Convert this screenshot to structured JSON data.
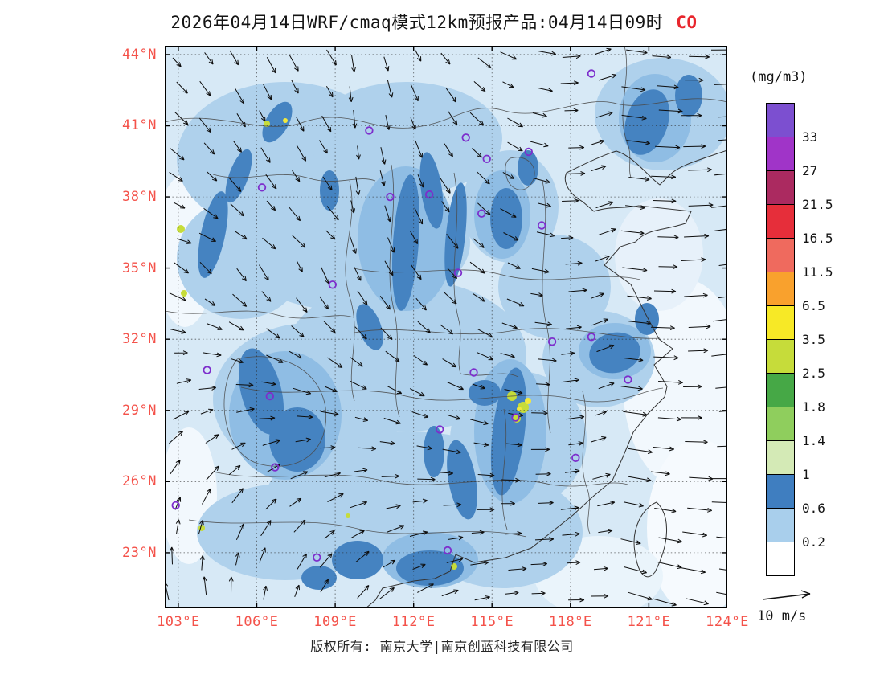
{
  "title": {
    "text": "2026年04月14日WRF/cmaq模式12km预报产品:04月14日09时",
    "species": "CO",
    "species_color": "#e8262d"
  },
  "map": {
    "bounds": {
      "lon_min": 102.48,
      "lon_max": 124.0,
      "lat_min": 20.66,
      "lat_max": 44.37
    },
    "tick_color": "#f4524a",
    "marker_color": "#7d2ecc",
    "lat_ticks": [
      {
        "label": "44°N",
        "value": 44
      },
      {
        "label": "41°N",
        "value": 41
      },
      {
        "label": "38°N",
        "value": 38
      },
      {
        "label": "35°N",
        "value": 35
      },
      {
        "label": "32°N",
        "value": 32
      },
      {
        "label": "29°N",
        "value": 29
      },
      {
        "label": "26°N",
        "value": 26
      },
      {
        "label": "23°N",
        "value": 23
      }
    ],
    "lon_ticks": [
      {
        "label": "103°E",
        "value": 103
      },
      {
        "label": "106°E",
        "value": 106
      },
      {
        "label": "109°E",
        "value": 109
      },
      {
        "label": "112°E",
        "value": 112
      },
      {
        "label": "115°E",
        "value": 115
      },
      {
        "label": "118°E",
        "value": 118
      },
      {
        "label": "121°E",
        "value": 121
      },
      {
        "label": "124°E",
        "value": 124
      }
    ],
    "city_markers": [
      {
        "lon": 118.8,
        "lat": 43.2
      },
      {
        "lon": 110.3,
        "lat": 40.8
      },
      {
        "lon": 114.0,
        "lat": 40.5
      },
      {
        "lon": 116.4,
        "lat": 39.9
      },
      {
        "lon": 114.8,
        "lat": 39.6
      },
      {
        "lon": 106.2,
        "lat": 38.4
      },
      {
        "lon": 112.6,
        "lat": 38.1
      },
      {
        "lon": 111.1,
        "lat": 38.0
      },
      {
        "lon": 114.6,
        "lat": 37.3
      },
      {
        "lon": 116.9,
        "lat": 36.8
      },
      {
        "lon": 113.7,
        "lat": 34.8
      },
      {
        "lon": 108.9,
        "lat": 34.3
      },
      {
        "lon": 104.1,
        "lat": 30.7
      },
      {
        "lon": 106.5,
        "lat": 29.6
      },
      {
        "lon": 114.3,
        "lat": 30.6
      },
      {
        "lon": 117.3,
        "lat": 31.9
      },
      {
        "lon": 118.8,
        "lat": 32.1
      },
      {
        "lon": 120.2,
        "lat": 30.3
      },
      {
        "lon": 113.0,
        "lat": 28.2
      },
      {
        "lon": 115.9,
        "lat": 28.7
      },
      {
        "lon": 118.2,
        "lat": 27.0
      },
      {
        "lon": 106.7,
        "lat": 26.6
      },
      {
        "lon": 102.9,
        "lat": 25.0
      },
      {
        "lon": 108.3,
        "lat": 22.8
      },
      {
        "lon": 113.3,
        "lat": 23.1
      }
    ]
  },
  "colorbar": {
    "units": "(mg/m3)",
    "levels": [
      33,
      27,
      21.5,
      16.5,
      11.5,
      6.5,
      3.5,
      2.5,
      1.8,
      1.4,
      1,
      0.6,
      0.2
    ],
    "boundary_labels": [
      "33",
      "27",
      "21.5",
      "16.5",
      "11.5",
      "6.5",
      "3.5",
      "2.5",
      "1.8",
      "1.4",
      "1",
      "0.6",
      "0.2"
    ],
    "segments": [
      "#7c4fd0",
      "#a034c8",
      "#ab2a60",
      "#e62e3a",
      "#ef6a5e",
      "#f9a12d",
      "#f7e926",
      "#c6dc3a",
      "#46a846",
      "#8fce5d",
      "#d4eab6",
      "#3f7ec0",
      "#a9cfec",
      "#ffffff"
    ]
  },
  "wind_legend": {
    "label": "10 m/s"
  },
  "footer": {
    "text": "版权所有: 南京大学|南京创蓝科技有限公司"
  }
}
